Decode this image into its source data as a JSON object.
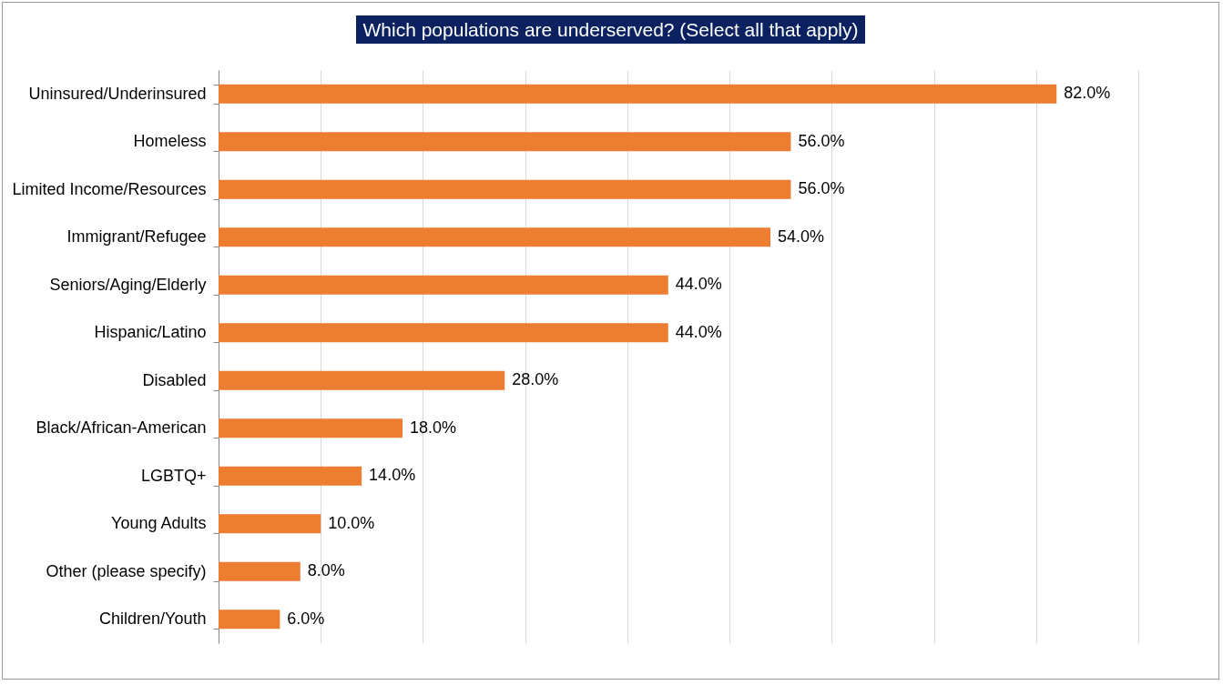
{
  "chart_data": {
    "type": "bar",
    "orientation": "horizontal",
    "title": "Which populations are underserved? (Select all that apply)",
    "categories": [
      "Uninsured/Underinsured",
      "Homeless",
      "Limited Income/Resources",
      "Immigrant/Refugee",
      "Seniors/Aging/Elderly",
      "Hispanic/Latino",
      "Disabled",
      "Black/African-American",
      "LGBTQ+",
      "Young Adults",
      "Other (please specify)",
      "Children/Youth"
    ],
    "values": [
      82,
      56,
      56,
      54,
      44,
      44,
      28,
      18,
      14,
      10,
      8,
      6
    ],
    "value_labels": [
      "82.0%",
      "56.0%",
      "56.0%",
      "54.0%",
      "44.0%",
      "44.0%",
      "28.0%",
      "18.0%",
      "14.0%",
      "10.0%",
      "8.0%",
      "6.0%"
    ],
    "color": "#ed7d31",
    "xlim": [
      0,
      90
    ],
    "xticks": [
      {
        "value": 0,
        "label": null
      },
      {
        "value": 10,
        "label": null
      },
      {
        "value": 20,
        "label": null
      },
      {
        "value": 30,
        "label": null
      },
      {
        "value": 40,
        "label": null
      },
      {
        "value": 50,
        "label": null
      },
      {
        "value": 60,
        "label": null
      },
      {
        "value": 70,
        "label": null
      },
      {
        "value": 80,
        "label": null
      },
      {
        "value": 90,
        "label": null
      }
    ],
    "tick_labels": "y",
    "grid": "x"
  }
}
